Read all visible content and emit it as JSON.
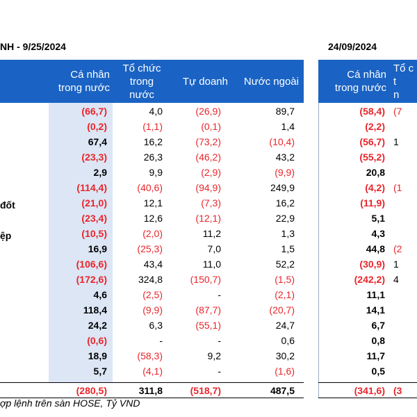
{
  "left_title": "NH - 9/25/2024",
  "right_title": "24/09/2024",
  "headers": {
    "ca_nhan": "Cá nhân\ntrong nước",
    "to_chuc": "Tổ chức\ntrong\nnước",
    "tu_doanh": "Tự doanh",
    "nuoc_ngoai": "Nước ngoài",
    "right_ca_nhan": "Cá nhân\ntrong nước",
    "right_to_chuc": "Tổ c\nt\nn"
  },
  "row_labels": {
    "r7": "đốt",
    "r9": "ệp"
  },
  "rows": [
    {
      "ca_nhan": "(66,7)",
      "to_chuc": "4,0",
      "tu_doanh": "(26,9)",
      "nuoc_ngoai": "89,7",
      "r_ca_nhan": "(58,4)",
      "r_partial": "(7"
    },
    {
      "ca_nhan": "(0,2)",
      "to_chuc": "(1,1)",
      "tu_doanh": "(0,1)",
      "nuoc_ngoai": "1,4",
      "r_ca_nhan": "(2,2)",
      "r_partial": ""
    },
    {
      "ca_nhan": "67,4",
      "to_chuc": "16,2",
      "tu_doanh": "(73,2)",
      "nuoc_ngoai": "(10,4)",
      "r_ca_nhan": "(56,7)",
      "r_partial": "1"
    },
    {
      "ca_nhan": "(23,3)",
      "to_chuc": "26,3",
      "tu_doanh": "(46,2)",
      "nuoc_ngoai": "43,2",
      "r_ca_nhan": "(55,2)",
      "r_partial": ""
    },
    {
      "ca_nhan": "2,9",
      "to_chuc": "9,9",
      "tu_doanh": "(2,9)",
      "nuoc_ngoai": "(9,9)",
      "r_ca_nhan": "20,8",
      "r_partial": ""
    },
    {
      "ca_nhan": "(114,4)",
      "to_chuc": "(40,6)",
      "tu_doanh": "(94,9)",
      "nuoc_ngoai": "249,9",
      "r_ca_nhan": "(4,2)",
      "r_partial": "(1"
    },
    {
      "ca_nhan": "(21,0)",
      "to_chuc": "12,1",
      "tu_doanh": "(7,3)",
      "nuoc_ngoai": "16,2",
      "r_ca_nhan": "(11,9)",
      "r_partial": ""
    },
    {
      "ca_nhan": "(23,4)",
      "to_chuc": "12,6",
      "tu_doanh": "(12,1)",
      "nuoc_ngoai": "22,9",
      "r_ca_nhan": "5,1",
      "r_partial": ""
    },
    {
      "ca_nhan": "(10,5)",
      "to_chuc": "(2,0)",
      "tu_doanh": "11,2",
      "nuoc_ngoai": "1,3",
      "r_ca_nhan": "4,3",
      "r_partial": ""
    },
    {
      "ca_nhan": "16,9",
      "to_chuc": "(25,3)",
      "tu_doanh": "7,0",
      "nuoc_ngoai": "1,5",
      "r_ca_nhan": "44,8",
      "r_partial": "(2"
    },
    {
      "ca_nhan": "(106,6)",
      "to_chuc": "43,4",
      "tu_doanh": "11,0",
      "nuoc_ngoai": "52,2",
      "r_ca_nhan": "(30,9)",
      "r_partial": "1"
    },
    {
      "ca_nhan": "(172,6)",
      "to_chuc": "324,8",
      "tu_doanh": "(150,7)",
      "nuoc_ngoai": "(1,5)",
      "r_ca_nhan": "(242,2)",
      "r_partial": "4"
    },
    {
      "ca_nhan": "4,6",
      "to_chuc": "(2,5)",
      "tu_doanh": "-",
      "nuoc_ngoai": "(2,1)",
      "r_ca_nhan": "11,1",
      "r_partial": ""
    },
    {
      "ca_nhan": "118,4",
      "to_chuc": "(9,9)",
      "tu_doanh": "(87,7)",
      "nuoc_ngoai": "(20,7)",
      "r_ca_nhan": "14,1",
      "r_partial": ""
    },
    {
      "ca_nhan": "24,2",
      "to_chuc": "6,3",
      "tu_doanh": "(55,1)",
      "nuoc_ngoai": "24,7",
      "r_ca_nhan": "6,7",
      "r_partial": ""
    },
    {
      "ca_nhan": "(0,6)",
      "to_chuc": "-",
      "tu_doanh": "-",
      "nuoc_ngoai": "0,6",
      "r_ca_nhan": "0,8",
      "r_partial": ""
    },
    {
      "ca_nhan": "18,9",
      "to_chuc": "(58,3)",
      "tu_doanh": "9,2",
      "nuoc_ngoai": "30,2",
      "r_ca_nhan": "11,7",
      "r_partial": ""
    },
    {
      "ca_nhan": "5,7",
      "to_chuc": "(4,1)",
      "tu_doanh": "-",
      "nuoc_ngoai": "(1,6)",
      "r_ca_nhan": "0,5",
      "r_partial": ""
    }
  ],
  "total": {
    "ca_nhan": "(280,5)",
    "to_chuc": "311,8",
    "tu_doanh": "(518,7)",
    "nuoc_ngoai": "487,5",
    "r_ca_nhan": "(341,6)",
    "r_partial": "(3"
  },
  "footnote": "ợp lệnh trên sàn HOSE, Tỷ VND",
  "colors": {
    "header_bg": "#1a63c4",
    "shade": "#dce6f5",
    "negative": "#e8252b"
  }
}
